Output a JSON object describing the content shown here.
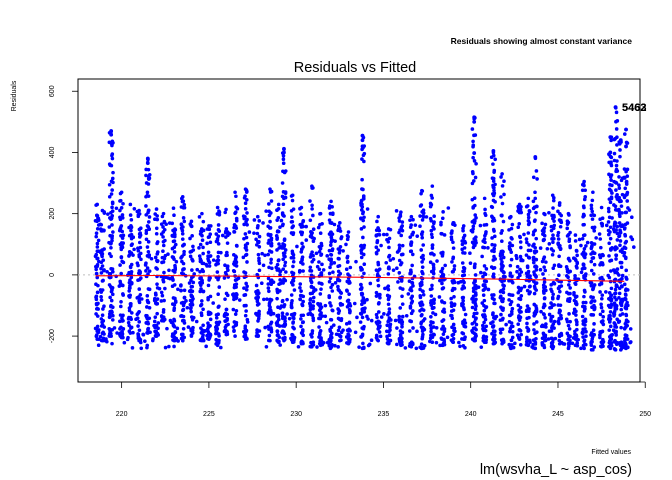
{
  "chart_data": {
    "type": "scatter",
    "title": "Residuals vs Fitted",
    "subtitle": "Residuals showing almost constant variance",
    "ylabel": "Residuals",
    "xlabel": "Fitted values",
    "caption": "lm(wsvha_L ~ asp_cos)",
    "xlim": [
      217.5,
      249.7
    ],
    "ylim": [
      -350,
      640
    ],
    "xticks": [
      220,
      225,
      230,
      235,
      240,
      245,
      250
    ],
    "yticks": [
      -200,
      0,
      200,
      400,
      600
    ],
    "point_color": "#0000ff",
    "smooth_color": "#ff0000",
    "zero_line_color": "#bebebe",
    "grid": false,
    "outlier_labels": [
      "5463",
      "5462"
    ],
    "outlier_x": 248.5,
    "outlier_y": 548,
    "smooth_line": [
      [
        218.5,
        -3
      ],
      [
        222,
        -2
      ],
      [
        226,
        -4
      ],
      [
        230,
        -6
      ],
      [
        234,
        -8
      ],
      [
        238,
        -11
      ],
      [
        242,
        -14
      ],
      [
        246,
        -18
      ],
      [
        248.8,
        -21
      ]
    ],
    "residual_columns": [
      {
        "x": 218.6,
        "min": -210,
        "max": 230
      },
      {
        "x": 218.9,
        "min": -215,
        "max": 210
      },
      {
        "x": 219.4,
        "min": -200,
        "max": 470
      },
      {
        "x": 220.0,
        "min": -205,
        "max": 270
      },
      {
        "x": 220.5,
        "min": -190,
        "max": 230
      },
      {
        "x": 221.0,
        "min": -215,
        "max": 210
      },
      {
        "x": 221.5,
        "min": -190,
        "max": 380
      },
      {
        "x": 222.0,
        "min": -200,
        "max": 215
      },
      {
        "x": 222.4,
        "min": -150,
        "max": 200
      },
      {
        "x": 223.0,
        "min": -215,
        "max": 195
      },
      {
        "x": 223.5,
        "min": -215,
        "max": 255
      },
      {
        "x": 224.0,
        "min": -200,
        "max": 175
      },
      {
        "x": 224.6,
        "min": -215,
        "max": 200
      },
      {
        "x": 225.0,
        "min": -210,
        "max": 160
      },
      {
        "x": 225.5,
        "min": -230,
        "max": 220
      },
      {
        "x": 226.0,
        "min": -195,
        "max": 150
      },
      {
        "x": 226.5,
        "min": -200,
        "max": 270
      },
      {
        "x": 227.1,
        "min": -210,
        "max": 280
      },
      {
        "x": 227.8,
        "min": -200,
        "max": 190
      },
      {
        "x": 228.5,
        "min": -215,
        "max": 280
      },
      {
        "x": 229.0,
        "min": -220,
        "max": 230
      },
      {
        "x": 229.3,
        "min": -215,
        "max": 410
      },
      {
        "x": 229.8,
        "min": -220,
        "max": 260
      },
      {
        "x": 230.3,
        "min": -225,
        "max": 220
      },
      {
        "x": 230.9,
        "min": -235,
        "max": 290
      },
      {
        "x": 231.4,
        "min": -230,
        "max": 200
      },
      {
        "x": 232.0,
        "min": -235,
        "max": 240
      },
      {
        "x": 232.5,
        "min": -215,
        "max": 170
      },
      {
        "x": 233.0,
        "min": -225,
        "max": 140
      },
      {
        "x": 233.8,
        "min": -240,
        "max": 455
      },
      {
        "x": 234.7,
        "min": -215,
        "max": 190
      },
      {
        "x": 235.3,
        "min": -225,
        "max": 150
      },
      {
        "x": 236.0,
        "min": -230,
        "max": 205
      },
      {
        "x": 236.6,
        "min": -235,
        "max": 190
      },
      {
        "x": 237.2,
        "min": -240,
        "max": 275
      },
      {
        "x": 237.8,
        "min": -220,
        "max": 290
      },
      {
        "x": 238.4,
        "min": -230,
        "max": 185
      },
      {
        "x": 239.0,
        "min": -220,
        "max": 170
      },
      {
        "x": 239.6,
        "min": -210,
        "max": 160
      },
      {
        "x": 240.2,
        "min": -215,
        "max": 515
      },
      {
        "x": 240.8,
        "min": -220,
        "max": 250
      },
      {
        "x": 241.3,
        "min": -225,
        "max": 400
      },
      {
        "x": 241.8,
        "min": -225,
        "max": 330
      },
      {
        "x": 242.3,
        "min": -240,
        "max": 190
      },
      {
        "x": 242.8,
        "min": -210,
        "max": 230
      },
      {
        "x": 243.3,
        "min": -230,
        "max": 250
      },
      {
        "x": 243.7,
        "min": -240,
        "max": 385
      },
      {
        "x": 244.2,
        "min": -230,
        "max": 200
      },
      {
        "x": 244.7,
        "min": -240,
        "max": 260
      },
      {
        "x": 245.1,
        "min": -225,
        "max": 235
      },
      {
        "x": 245.6,
        "min": -240,
        "max": 200
      },
      {
        "x": 246.0,
        "min": -230,
        "max": 130
      },
      {
        "x": 246.5,
        "min": -240,
        "max": 305
      },
      {
        "x": 247.0,
        "min": -245,
        "max": 270
      },
      {
        "x": 247.5,
        "min": -235,
        "max": 220
      },
      {
        "x": 248.0,
        "min": -240,
        "max": 450
      },
      {
        "x": 248.3,
        "min": -245,
        "max": 548
      },
      {
        "x": 248.6,
        "min": -245,
        "max": 440
      },
      {
        "x": 248.9,
        "min": -240,
        "max": 475
      }
    ],
    "high_points": [
      {
        "x": 219.4,
        "y": 470
      },
      {
        "x": 219.4,
        "y": 458
      },
      {
        "x": 221.5,
        "y": 380
      },
      {
        "x": 221.5,
        "y": 365
      },
      {
        "x": 229.3,
        "y": 412
      },
      {
        "x": 229.3,
        "y": 400
      },
      {
        "x": 233.8,
        "y": 455
      },
      {
        "x": 233.8,
        "y": 440
      },
      {
        "x": 233.8,
        "y": 420
      },
      {
        "x": 240.2,
        "y": 515
      },
      {
        "x": 240.2,
        "y": 500
      },
      {
        "x": 240.2,
        "y": 398
      },
      {
        "x": 241.3,
        "y": 405
      },
      {
        "x": 243.7,
        "y": 385
      },
      {
        "x": 248.0,
        "y": 450
      },
      {
        "x": 248.6,
        "y": 440
      },
      {
        "x": 248.9,
        "y": 475
      },
      {
        "x": 248.3,
        "y": 548
      },
      {
        "x": 248.9,
        "y": 420
      },
      {
        "x": 248.0,
        "y": 400
      }
    ]
  }
}
